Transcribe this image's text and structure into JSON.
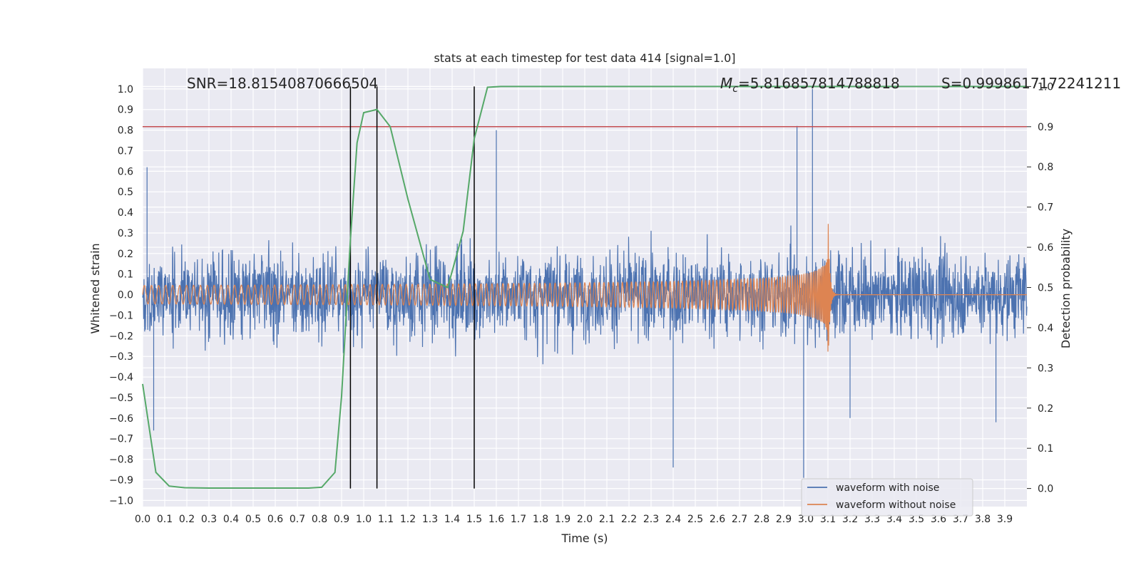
{
  "chart_data": {
    "type": "line",
    "title": "stats at each timestep for test data 414 [signal=1.0]",
    "xlabel": "Time (s)",
    "ylabel": "Whitened strain",
    "y2label": "Detection probability",
    "xlim": [
      0.0,
      4.0
    ],
    "ylim": [
      -1.03,
      1.1
    ],
    "y2lim": [
      -0.045,
      1.045
    ],
    "xticks": [
      "0.0",
      "0.1",
      "0.2",
      "0.3",
      "0.4",
      "0.5",
      "0.6",
      "0.7",
      "0.8",
      "0.9",
      "1.0",
      "1.1",
      "1.2",
      "1.3",
      "1.4",
      "1.5",
      "1.6",
      "1.7",
      "1.8",
      "1.9",
      "2.0",
      "2.1",
      "2.2",
      "2.3",
      "2.4",
      "2.5",
      "2.6",
      "2.7",
      "2.8",
      "2.9",
      "3.0",
      "3.1",
      "3.2",
      "3.3",
      "3.4",
      "3.5",
      "3.6",
      "3.7",
      "3.8",
      "3.9"
    ],
    "yticks": [
      "1.0",
      "0.9",
      "0.8",
      "0.7",
      "0.6",
      "0.5",
      "0.4",
      "0.3",
      "0.2",
      "0.1",
      "0.0",
      "−0.1",
      "−0.2",
      "−0.3",
      "−0.4",
      "−0.5",
      "−0.6",
      "−0.7",
      "−0.8",
      "−0.9",
      "−1.0"
    ],
    "y2ticks": [
      "1.0",
      "0.9",
      "0.8",
      "0.7",
      "0.6",
      "0.5",
      "0.4",
      "0.3",
      "0.2",
      "0.1",
      "0.0"
    ],
    "grid": true,
    "legend_position": "lower-right",
    "annotations": {
      "snr": "SNR=18.81540870666504",
      "mc_symbol": "M",
      "mc_sub": "c",
      "mc_value": "=5.816857814788818",
      "s_value": "S=0.9998617172241211"
    },
    "vertical_lines_x": [
      0.94,
      1.06,
      1.5
    ],
    "threshold_y2": 0.9,
    "series": [
      {
        "name": "waveform with noise",
        "color": "#4c72b0",
        "kind": "noise",
        "amplitude_envelope": 0.38,
        "notable_peaks": [
          [
            0.02,
            0.62
          ],
          [
            0.05,
            -0.66
          ],
          [
            1.6,
            0.8
          ],
          [
            2.4,
            -0.84
          ],
          [
            2.96,
            0.82
          ],
          [
            3.03,
            1.0
          ],
          [
            2.99,
            -0.89
          ],
          [
            3.2,
            -0.6
          ],
          [
            3.86,
            -0.62
          ]
        ]
      },
      {
        "name": "waveform without noise",
        "color": "#dd8452",
        "kind": "chirp",
        "amplitude_start": 0.045,
        "amplitude_peak": 0.43,
        "merger_time": 3.1
      },
      {
        "name": "",
        "color": "#55a868",
        "axis": "right",
        "x": [
          0.0,
          0.06,
          0.12,
          0.19,
          0.3,
          0.5,
          0.75,
          0.81,
          0.87,
          0.9,
          0.94,
          0.97,
          1.0,
          1.06,
          1.12,
          1.2,
          1.3,
          1.38,
          1.45,
          1.5,
          1.56,
          1.62,
          1.8,
          2.5,
          3.0,
          3.5,
          4.0
        ],
        "y": [
          0.26,
          0.04,
          0.006,
          0.002,
          0.001,
          0.001,
          0.001,
          0.003,
          0.04,
          0.23,
          0.62,
          0.86,
          0.935,
          0.943,
          0.9,
          0.72,
          0.52,
          0.5,
          0.64,
          0.87,
          0.998,
          1.0,
          1.0,
          1.0,
          1.0,
          1.0,
          1.0
        ]
      }
    ]
  }
}
